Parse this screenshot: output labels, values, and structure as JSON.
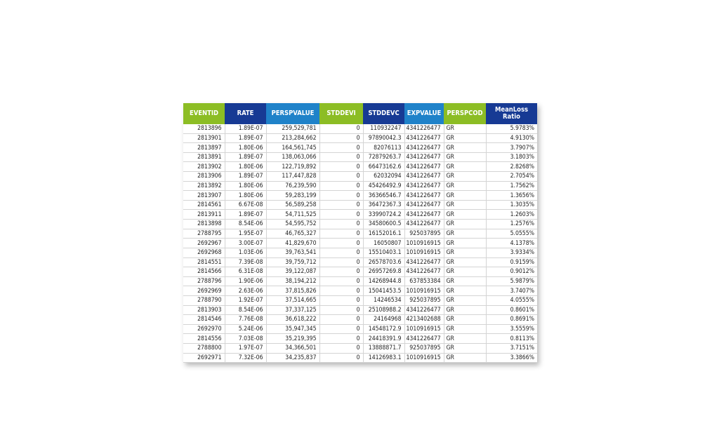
{
  "table": {
    "columns": [
      {
        "label": "EVENTID",
        "color": "#8cbd24",
        "align": "right"
      },
      {
        "label": "RATE",
        "color": "#173a94",
        "align": "right"
      },
      {
        "label": "PERSPVALUE",
        "color": "#1f82c9",
        "align": "right"
      },
      {
        "label": "STDDEVI",
        "color": "#8cbd24",
        "align": "right"
      },
      {
        "label": "STDDEVC",
        "color": "#173a94",
        "align": "right"
      },
      {
        "label": "EXPVALUE",
        "color": "#1f82c9",
        "align": "right"
      },
      {
        "label": "PERSPCOD",
        "color": "#8cbd24",
        "align": "left"
      },
      {
        "label": "MeanLoss Ratio",
        "color": "#173a94",
        "align": "right"
      }
    ],
    "rows": [
      [
        "2813896",
        "1.89E-07",
        "259,529,781",
        "0",
        "110932247",
        "4341226477",
        "GR",
        "5.9783%"
      ],
      [
        "2813901",
        "1.89E-07",
        "213,284,662",
        "0",
        "97890042.3",
        "4341226477",
        "GR",
        "4.9130%"
      ],
      [
        "2813897",
        "1.80E-06",
        "164,561,745",
        "0",
        "82076113",
        "4341226477",
        "GR",
        "3.7907%"
      ],
      [
        "2813891",
        "1.89E-07",
        "138,063,066",
        "0",
        "72879263.7",
        "4341226477",
        "GR",
        "3.1803%"
      ],
      [
        "2813902",
        "1.80E-06",
        "122,719,892",
        "0",
        "66473162.6",
        "4341226477",
        "GR",
        "2.8268%"
      ],
      [
        "2813906",
        "1.89E-07",
        "117,447,828",
        "0",
        "62032094",
        "4341226477",
        "GR",
        "2.7054%"
      ],
      [
        "2813892",
        "1.80E-06",
        "76,239,590",
        "0",
        "45426492.9",
        "4341226477",
        "GR",
        "1.7562%"
      ],
      [
        "2813907",
        "1.80E-06",
        "59,283,199",
        "0",
        "36366546.7",
        "4341226477",
        "GR",
        "1.3656%"
      ],
      [
        "2814561",
        "6.67E-08",
        "56,589,258",
        "0",
        "36472367.3",
        "4341226477",
        "GR",
        "1.3035%"
      ],
      [
        "2813911",
        "1.89E-07",
        "54,711,525",
        "0",
        "33990724.2",
        "4341226477",
        "GR",
        "1.2603%"
      ],
      [
        "2813898",
        "8.54E-06",
        "54,595,752",
        "0",
        "34580600.5",
        "4341226477",
        "GR",
        "1.2576%"
      ],
      [
        "2788795",
        "1.95E-07",
        "46,765,327",
        "0",
        "16152016.1",
        "925037895",
        "GR",
        "5.0555%"
      ],
      [
        "2692967",
        "3.00E-07",
        "41,829,670",
        "0",
        "16050807",
        "1010916915",
        "GR",
        "4.1378%"
      ],
      [
        "2692968",
        "1.03E-06",
        "39,763,541",
        "0",
        "15510403.1",
        "1010916915",
        "GR",
        "3.9334%"
      ],
      [
        "2814551",
        "7.39E-08",
        "39,759,712",
        "0",
        "26578703.6",
        "4341226477",
        "GR",
        "0.9159%"
      ],
      [
        "2814566",
        "6.31E-08",
        "39,122,087",
        "0",
        "26957269.8",
        "4341226477",
        "GR",
        "0.9012%"
      ],
      [
        "2788796",
        "1.90E-06",
        "38,194,212",
        "0",
        "14268944.8",
        "637853384",
        "GR",
        "5.9879%"
      ],
      [
        "2692969",
        "2.63E-06",
        "37,815,826",
        "0",
        "15041453.5",
        "1010916915",
        "GR",
        "3.7407%"
      ],
      [
        "2788790",
        "1.92E-07",
        "37,514,665",
        "0",
        "14246534",
        "925037895",
        "GR",
        "4.0555%"
      ],
      [
        "2813903",
        "8.54E-06",
        "37,337,125",
        "0",
        "25108988.2",
        "4341226477",
        "GR",
        "0.8601%"
      ],
      [
        "2814546",
        "7.76E-08",
        "36,618,222",
        "0",
        "24164968",
        "4213402688",
        "GR",
        "0.8691%"
      ],
      [
        "2692970",
        "5.24E-06",
        "35,947,345",
        "0",
        "14548172.9",
        "1010916915",
        "GR",
        "3.5559%"
      ],
      [
        "2814556",
        "7.03E-08",
        "35,219,395",
        "0",
        "24418391.9",
        "4341226477",
        "GR",
        "0.8113%"
      ],
      [
        "2788800",
        "1.97E-07",
        "34,366,501",
        "0",
        "13888871.7",
        "925037895",
        "GR",
        "3.7151%"
      ],
      [
        "2692971",
        "7.32E-06",
        "34,235,837",
        "0",
        "14126983.1",
        "1010916915",
        "GR",
        "3.3866%"
      ]
    ]
  }
}
